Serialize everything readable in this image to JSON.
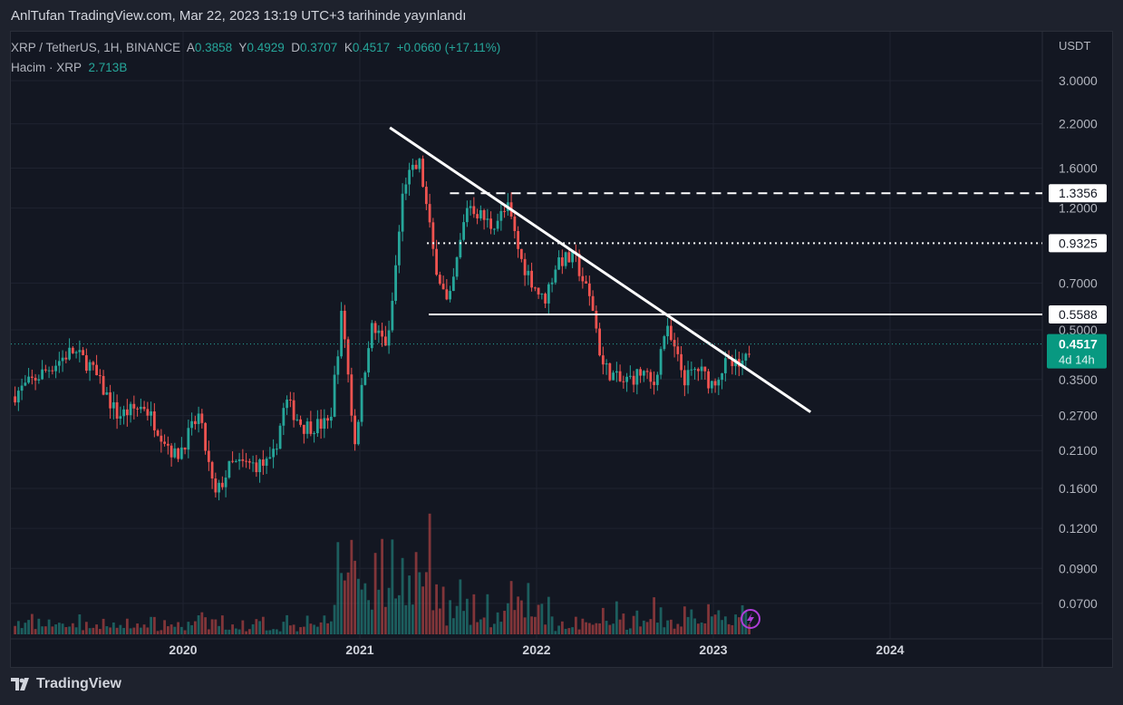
{
  "published": "AnlTufan TradingView.com, Mar 22, 2023 13:19 UTC+3 tarihinde yayınlandı",
  "legend": {
    "symbol": "XRP / TetherUS, 1H, BINANCE",
    "o_label": "A",
    "o": "0.3858",
    "h_label": "Y",
    "h": "0.4929",
    "l_label": "D",
    "l": "0.3707",
    "c_label": "K",
    "c": "0.4517",
    "change": "+0.0660 (+17.11%)",
    "volume_label": "Hacim · XRP",
    "volume": "2.713B"
  },
  "footer": {
    "brand": "TradingView"
  },
  "colors": {
    "up": "#26a69a",
    "down": "#ef5350",
    "bg": "#131722",
    "line": "#ffffff"
  },
  "chart_data": {
    "type": "candlestick",
    "currency": "USDT",
    "yscale": "log",
    "ylim": [
      0.064,
      3.3
    ],
    "xlim": [
      2018.98,
      2024.8
    ],
    "y_ticks": [
      "3.0000",
      "2.2000",
      "1.6000",
      "1.2000",
      "0.7000",
      "0.5000",
      "0.3500",
      "0.2700",
      "0.2100",
      "0.1600",
      "0.1200",
      "0.0900",
      "0.0700"
    ],
    "x_ticks": [
      "2020",
      "2021",
      "2022",
      "2023",
      "2024"
    ],
    "price_path": [
      [
        2019.03,
        0.31
      ],
      [
        2019.37,
        0.43
      ],
      [
        2019.47,
        0.39
      ],
      [
        2019.63,
        0.27
      ],
      [
        2019.78,
        0.29
      ],
      [
        2019.96,
        0.2
      ],
      [
        2020.09,
        0.27
      ],
      [
        2020.18,
        0.15
      ],
      [
        2020.27,
        0.19
      ],
      [
        2020.5,
        0.19
      ],
      [
        2020.58,
        0.3
      ],
      [
        2020.68,
        0.25
      ],
      [
        2020.83,
        0.255
      ],
      [
        2020.9,
        0.58
      ],
      [
        2020.97,
        0.22
      ],
      [
        2021.06,
        0.51
      ],
      [
        2021.16,
        0.45
      ],
      [
        2021.25,
        1.45
      ],
      [
        2021.34,
        1.65
      ],
      [
        2021.42,
        0.84
      ],
      [
        2021.5,
        0.58
      ],
      [
        2021.61,
        1.25
      ],
      [
        2021.74,
        1.06
      ],
      [
        2021.84,
        1.2
      ],
      [
        2021.91,
        0.83
      ],
      [
        2022.04,
        0.61
      ],
      [
        2022.12,
        0.83
      ],
      [
        2022.22,
        0.83
      ],
      [
        2022.32,
        0.58
      ],
      [
        2022.37,
        0.39
      ],
      [
        2022.48,
        0.34
      ],
      [
        2022.6,
        0.37
      ],
      [
        2022.66,
        0.33
      ],
      [
        2022.73,
        0.51
      ],
      [
        2022.84,
        0.35
      ],
      [
        2022.91,
        0.38
      ],
      [
        2022.99,
        0.34
      ],
      [
        2023.07,
        0.39
      ],
      [
        2023.17,
        0.38
      ],
      [
        2023.21,
        0.4517
      ]
    ],
    "levels": [
      {
        "price": 1.3356,
        "label": "1.3356",
        "style": "dashed",
        "from": 2021.51
      },
      {
        "price": 0.9325,
        "label": "0.9325",
        "style": "dotted",
        "from": 2021.38
      },
      {
        "price": 0.5588,
        "label": "0.5588",
        "style": "solid",
        "from": 2021.39
      }
    ],
    "trendline": [
      [
        2021.17,
        2.14
      ],
      [
        2023.55,
        0.277
      ]
    ],
    "last_price": {
      "value": "0.4517",
      "countdown": "4d 14h"
    }
  }
}
